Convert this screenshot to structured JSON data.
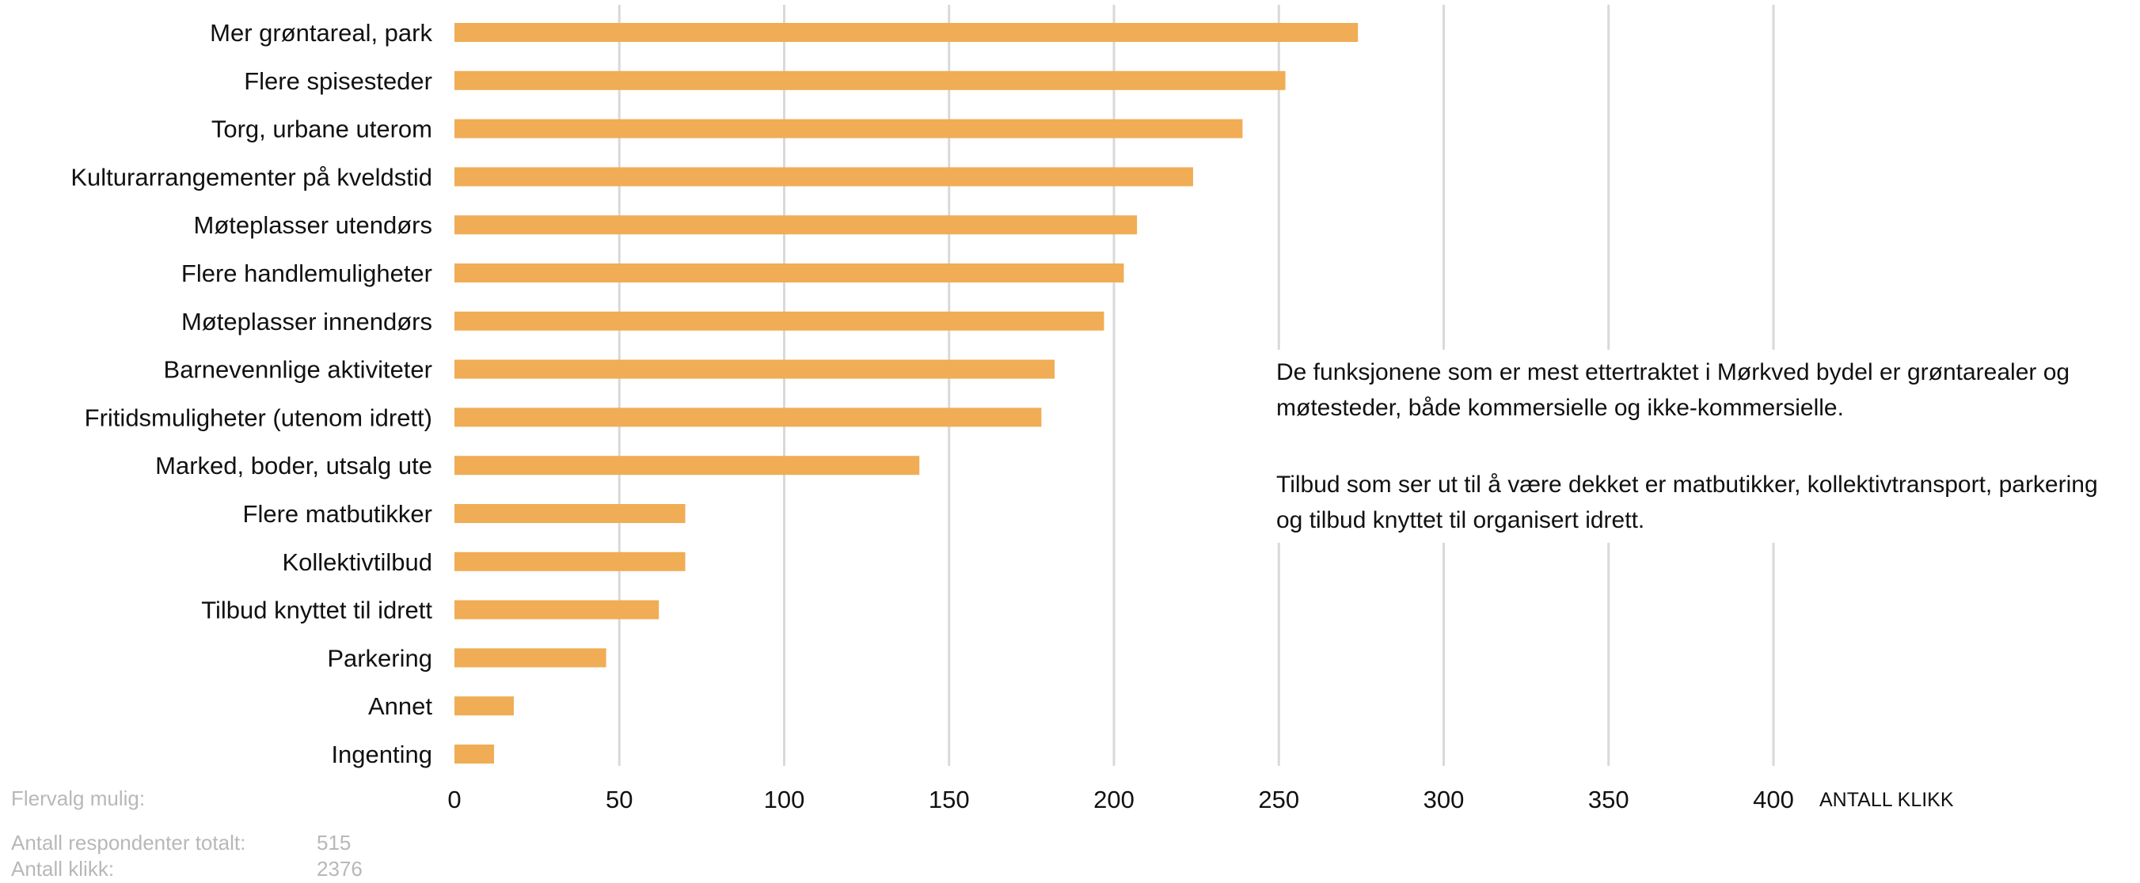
{
  "chart_data": {
    "type": "bar",
    "orientation": "horizontal",
    "categories": [
      "Mer grøntareal, park",
      "Flere spisesteder",
      "Torg, urbane uterom",
      "Kulturarrangementer på kveldstid",
      "Møteplasser utendørs",
      "Flere handlemuligheter",
      "Møteplasser innendørs",
      "Barnevennlige aktiviteter",
      "Fritidsmuligheter (utenom idrett)",
      "Marked, boder, utsalg ute",
      "Flere matbutikker",
      "Kollektivtilbud",
      "Tilbud knyttet til idrett",
      "Parkering",
      "Annet",
      "Ingenting"
    ],
    "values": [
      274,
      252,
      239,
      224,
      207,
      203,
      197,
      182,
      178,
      141,
      70,
      70,
      62,
      46,
      18,
      12
    ],
    "xlim": [
      0,
      400
    ],
    "xticks": [
      0,
      50,
      100,
      150,
      200,
      250,
      300,
      350,
      400
    ],
    "xlabel": "ANTALL KLIKK",
    "grid": "vertical",
    "bar_color": "#f0ad55",
    "grid_color": "#d9d9d9"
  },
  "annotation": {
    "paragraph1": "De funksjonene som er mest ettertraktet i Mørkved bydel er grøntarealer og møtesteder, både kommersielle og ikke-kommersielle.",
    "paragraph2": "Tilbud som ser ut til å være dekket er matbutikker, kollektivtransport, parkering og tilbud knyttet til organisert idrett."
  },
  "footer": {
    "multi_choice_label": "Flervalg mulig:",
    "respondents_label": "Antall respondenter totalt:",
    "respondents_value": "515",
    "clicks_label": "Antall klikk:",
    "clicks_value": "2376"
  }
}
